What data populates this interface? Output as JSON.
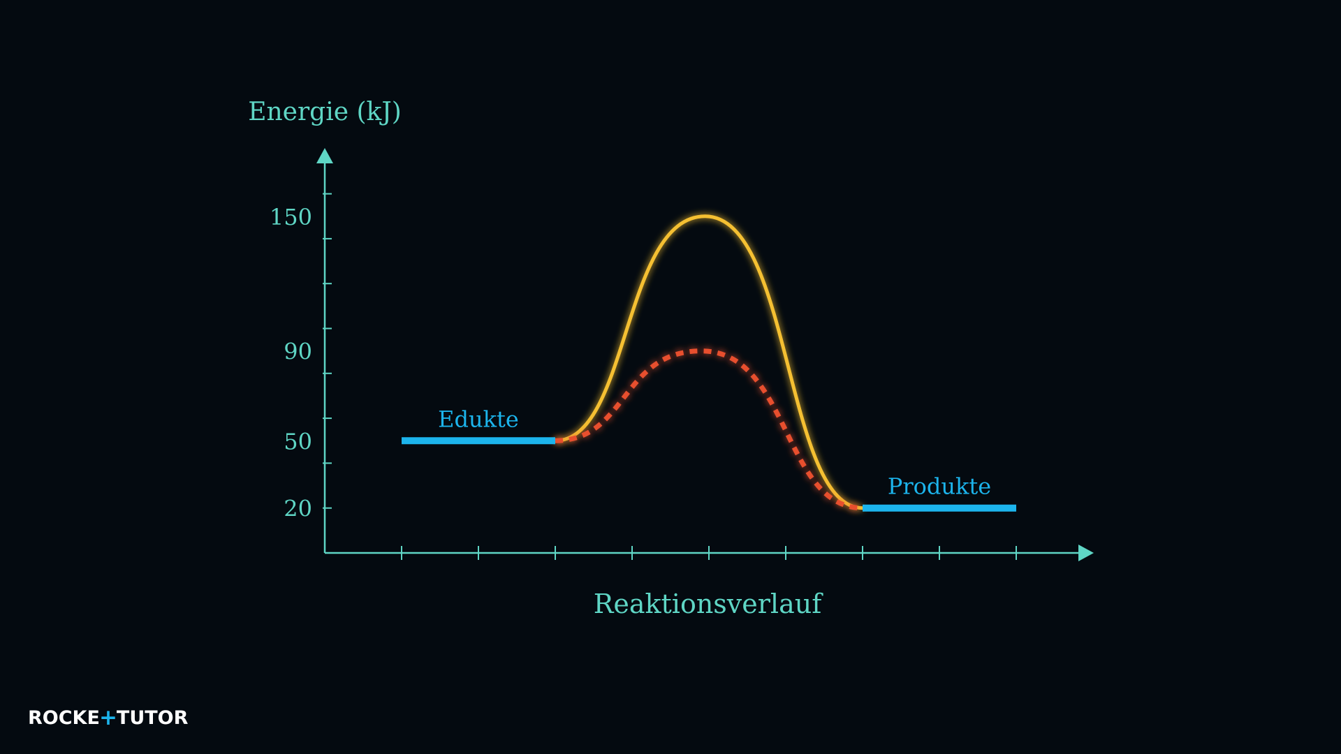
{
  "chart_data": {
    "type": "line",
    "ylabel": "Energie (kJ)",
    "xlabel": "Reaktionsverlauf",
    "y_tick_labels": [
      150,
      90,
      50,
      20
    ],
    "ylim": [
      0,
      175
    ],
    "x_tick_count": 9,
    "levels": [
      {
        "name": "Edukte",
        "energy": 50,
        "x": [
          1,
          3
        ]
      },
      {
        "name": "Produkte",
        "energy": 20,
        "x": [
          7,
          9
        ]
      }
    ],
    "series": [
      {
        "style": "solid",
        "color": "#f5c030",
        "start": [
          3,
          50
        ],
        "peak": [
          4.95,
          150
        ],
        "end": [
          7,
          20
        ]
      },
      {
        "style": "dashed",
        "color": "#e8502e",
        "start": [
          3,
          50
        ],
        "peak": [
          4.9,
          90
        ],
        "end": [
          7,
          20
        ]
      }
    ],
    "level_color": "#1cb4ec",
    "axis_color": "#5fd6c5",
    "grid": false
  },
  "logo": {
    "left": "ROCKE",
    "plus": "+",
    "right": "TUTOR"
  }
}
